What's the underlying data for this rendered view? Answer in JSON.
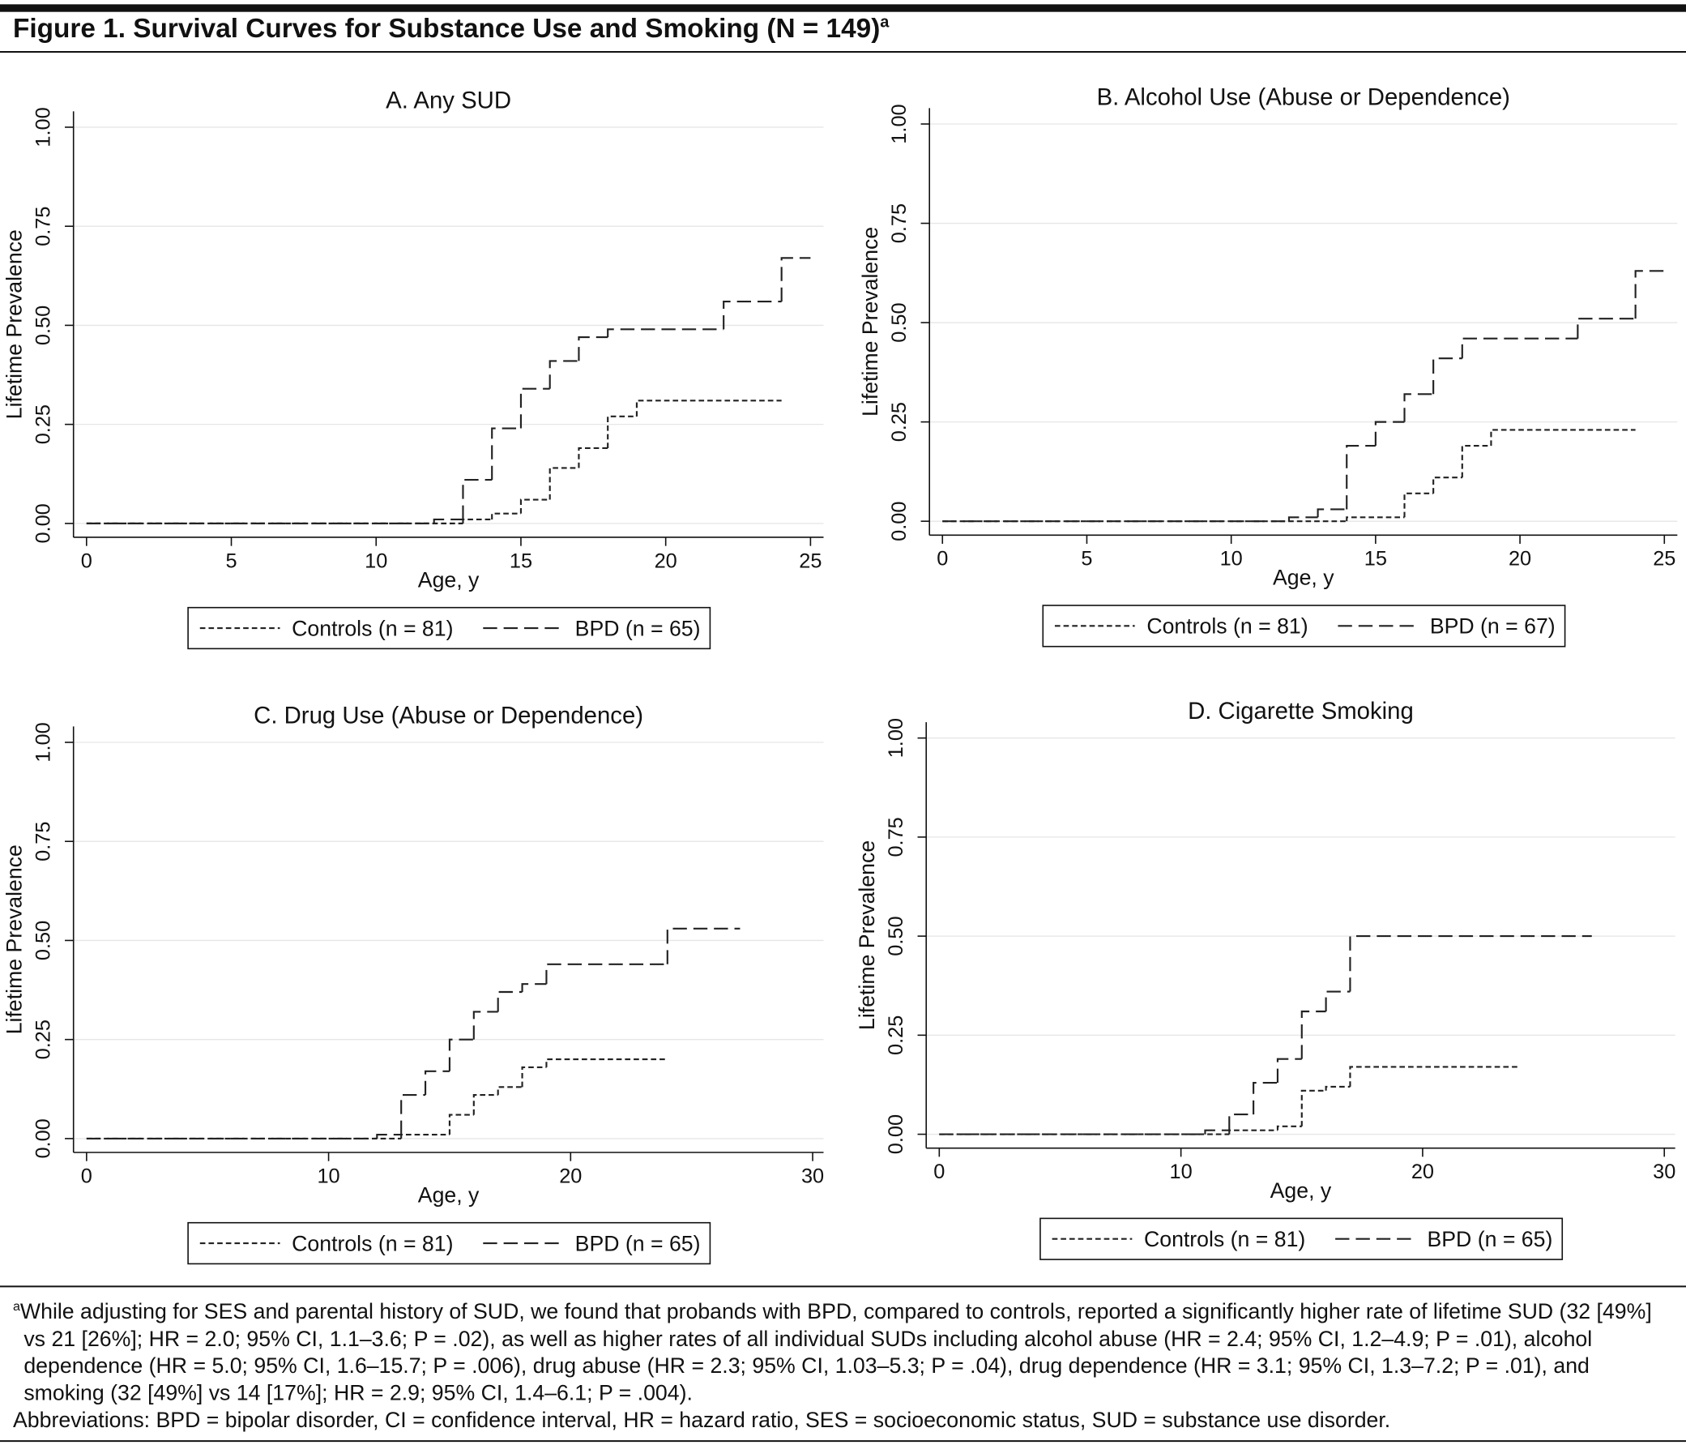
{
  "figure": {
    "title": "Figure 1. Survival Curves for Substance Use and Smoking (N = 149)",
    "note_mark": "a",
    "footnote": "While adjusting for SES and parental history of SUD, we found that probands with BPD, compared to controls, reported a significantly higher rate of lifetime SUD (32 [49%] vs 21 [26%]; HR = 2.0; 95% CI, 1.1–3.6; P = .02), as well as higher rates of all individual SUDs including alcohol abuse (HR = 2.4; 95% CI, 1.2–4.9; P = .01), alcohol dependence (HR = 5.0; 95% CI, 1.6–15.7; P = .006), drug abuse (HR = 2.3; 95% CI, 1.03–5.3; P = .04), drug dependence (HR = 3.1; 95% CI, 1.3–7.2; P = .01), and smoking (32 [49%] vs 14 [17%]; HR = 2.9; 95% CI, 1.4–6.1; P = .004).",
    "abbreviations": "Abbreviations: BPD = bipolar disorder, CI = confidence interval, HR = hazard ratio, SES = socioeconomic status, SUD = substance use disorder."
  },
  "chart_data": [
    {
      "type": "step",
      "title": "A. Any SUD",
      "x_label": "Age, y",
      "y_label": "Lifetime Prevalence",
      "xlim": [
        -0.45,
        25.45
      ],
      "xticks": [
        0,
        5,
        10,
        15,
        20,
        25
      ],
      "ylim": [
        -0.035,
        1.04
      ],
      "yticks": [
        {
          "value": 0,
          "label": "0.00"
        },
        {
          "value": 0.25,
          "label": "0.25"
        },
        {
          "value": 0.5,
          "label": "0.50"
        },
        {
          "value": 0.75,
          "label": "0.75"
        },
        {
          "value": 1,
          "label": "1.00"
        }
      ],
      "grid": true,
      "series": [
        {
          "name": "Controls (n = 81)",
          "color": "#222222",
          "style": "short-dash",
          "x": [
            0,
            13,
            14,
            15,
            16,
            17,
            18,
            19,
            24
          ],
          "values": [
            0,
            0.01,
            0.025,
            0.06,
            0.14,
            0.19,
            0.27,
            0.31,
            0.31
          ]
        },
        {
          "name": "BPD (n = 65)",
          "color": "#222222",
          "style": "long-dash",
          "x": [
            0,
            12,
            13,
            14,
            15,
            16,
            17,
            18,
            22,
            24,
            25
          ],
          "values": [
            0,
            0.01,
            0.11,
            0.24,
            0.34,
            0.41,
            0.47,
            0.49,
            0.56,
            0.67,
            0.67
          ]
        }
      ]
    },
    {
      "type": "step",
      "title": "B. Alcohol Use (Abuse or Dependence)",
      "x_label": "Age, y",
      "y_label": "Lifetime Prevalence",
      "xlim": [
        -0.45,
        25.45
      ],
      "xticks": [
        0,
        5,
        10,
        15,
        20,
        25
      ],
      "ylim": [
        -0.035,
        1.04
      ],
      "yticks": [
        {
          "value": 0,
          "label": "0.00"
        },
        {
          "value": 0.25,
          "label": "0.25"
        },
        {
          "value": 0.5,
          "label": "0.50"
        },
        {
          "value": 0.75,
          "label": "0.75"
        },
        {
          "value": 1,
          "label": "1.00"
        }
      ],
      "grid": true,
      "series": [
        {
          "name": "Controls (n = 81)",
          "color": "#222222",
          "style": "short-dash",
          "x": [
            0,
            14,
            16,
            17,
            18,
            19,
            24
          ],
          "values": [
            0,
            0.01,
            0.07,
            0.11,
            0.19,
            0.23,
            0.23
          ]
        },
        {
          "name": "BPD (n = 67)",
          "color": "#222222",
          "style": "long-dash",
          "x": [
            0,
            12,
            13,
            14,
            15,
            16,
            17,
            18,
            22,
            24,
            25
          ],
          "values": [
            0,
            0.01,
            0.03,
            0.19,
            0.25,
            0.32,
            0.41,
            0.46,
            0.51,
            0.63,
            0.63
          ]
        }
      ]
    },
    {
      "type": "step",
      "title": "C. Drug Use (Abuse or Dependence)",
      "x_label": "Age, y",
      "y_label": "Lifetime Prevalence",
      "xlim": [
        -0.54,
        30.45
      ],
      "xticks": [
        0,
        10,
        20,
        30
      ],
      "ylim": [
        -0.035,
        1.04
      ],
      "yticks": [
        {
          "value": 0,
          "label": "0.00"
        },
        {
          "value": 0.25,
          "label": "0.25"
        },
        {
          "value": 0.5,
          "label": "0.50"
        },
        {
          "value": 0.75,
          "label": "0.75"
        },
        {
          "value": 1,
          "label": "1.00"
        }
      ],
      "grid": true,
      "series": [
        {
          "name": "Controls (n = 81)",
          "color": "#222222",
          "style": "short-dash",
          "x": [
            0,
            13,
            15,
            16,
            17,
            18,
            19,
            24
          ],
          "values": [
            0,
            0.01,
            0.06,
            0.11,
            0.13,
            0.18,
            0.2,
            0.2
          ]
        },
        {
          "name": "BPD (n = 65)",
          "color": "#222222",
          "style": "long-dash",
          "x": [
            0,
            12,
            13,
            14,
            15,
            16,
            17,
            18,
            19,
            24,
            27
          ],
          "values": [
            0,
            0.01,
            0.11,
            0.17,
            0.25,
            0.32,
            0.37,
            0.39,
            0.44,
            0.53,
            0.53
          ]
        }
      ]
    },
    {
      "type": "step",
      "title": "D. Cigarette Smoking",
      "x_label": "Age, y",
      "y_label": "Lifetime Prevalence",
      "xlim": [
        -0.54,
        30.45
      ],
      "xticks": [
        0,
        10,
        20,
        30
      ],
      "ylim": [
        -0.035,
        1.04
      ],
      "yticks": [
        {
          "value": 0,
          "label": "0.00"
        },
        {
          "value": 0.25,
          "label": "0.25"
        },
        {
          "value": 0.5,
          "label": "0.50"
        },
        {
          "value": 0.75,
          "label": "0.75"
        },
        {
          "value": 1,
          "label": "1.00"
        }
      ],
      "grid": true,
      "series": [
        {
          "name": "Controls (n = 81)",
          "color": "#222222",
          "style": "short-dash",
          "x": [
            0,
            12,
            14,
            15,
            16,
            17,
            24
          ],
          "values": [
            0,
            0.01,
            0.02,
            0.11,
            0.12,
            0.17,
            0.17
          ]
        },
        {
          "name": "BPD (n = 65)",
          "color": "#222222",
          "style": "long-dash",
          "x": [
            0,
            11,
            12,
            13,
            14,
            15,
            16,
            17,
            27
          ],
          "values": [
            0,
            0.01,
            0.05,
            0.13,
            0.19,
            0.31,
            0.36,
            0.5,
            0.5
          ]
        }
      ]
    }
  ]
}
